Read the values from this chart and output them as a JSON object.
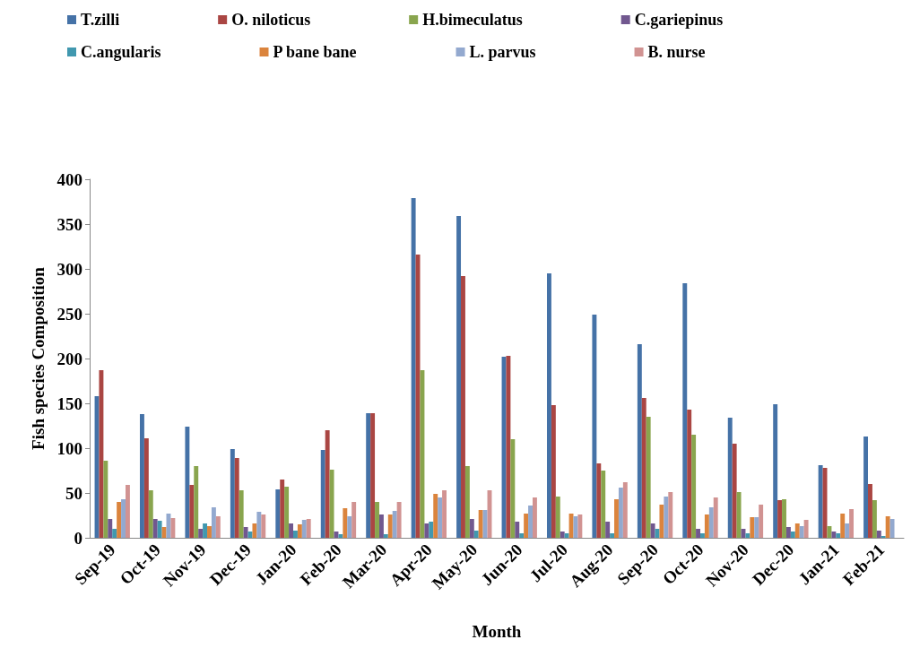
{
  "chart_data": {
    "type": "bar",
    "xlabel": "Month",
    "ylabel": "Fish species Composition",
    "categories": [
      "Sep-19",
      "Oct-19",
      "Nov-19",
      "Dec-19",
      "Jan-20",
      "Feb-20",
      "Mar-20",
      "Apr-20",
      "May-20",
      "Jun-20",
      "Jul-20",
      "Aug-20",
      "Sep-20",
      "Oct-20",
      "Nov-20",
      "Dec-20",
      "Jan-21",
      "Feb-21"
    ],
    "series": [
      {
        "name": "T.zilli",
        "color": "#4572a7",
        "values": [
          158,
          138,
          124,
          99,
          54,
          98,
          139,
          379,
          359,
          202,
          295,
          249,
          216,
          284,
          134,
          149,
          81,
          113
        ]
      },
      {
        "name": "O. niloticus",
        "color": "#aa4643",
        "values": [
          187,
          111,
          59,
          89,
          65,
          120,
          139,
          316,
          292,
          203,
          148,
          83,
          156,
          143,
          105,
          42,
          78,
          60
        ]
      },
      {
        "name": "H.bimeculatus",
        "color": "#89a54e",
        "values": [
          86,
          53,
          80,
          53,
          57,
          76,
          40,
          187,
          80,
          110,
          46,
          75,
          135,
          115,
          51,
          43,
          13,
          42
        ]
      },
      {
        "name": "C.gariepinus",
        "color": "#71588f",
        "values": [
          21,
          21,
          10,
          12,
          16,
          7,
          26,
          16,
          21,
          18,
          7,
          18,
          16,
          10,
          10,
          12,
          7,
          8
        ]
      },
      {
        "name": "C.angularis",
        "color": "#4198af",
        "values": [
          10,
          19,
          16,
          7,
          8,
          4,
          4,
          18,
          8,
          5,
          5,
          5,
          10,
          5,
          5,
          7,
          5,
          2
        ]
      },
      {
        "name": "P bane bane",
        "color": "#db843d",
        "values": [
          40,
          12,
          13,
          16,
          15,
          33,
          26,
          49,
          31,
          27,
          27,
          43,
          37,
          26,
          23,
          16,
          27,
          24
        ]
      },
      {
        "name": "L. parvus",
        "color": "#93a9cf",
        "values": [
          43,
          27,
          34,
          29,
          20,
          24,
          30,
          45,
          31,
          36,
          24,
          56,
          46,
          34,
          23,
          13,
          16,
          21
        ]
      },
      {
        "name": "B. nurse",
        "color": "#d19392",
        "values": [
          59,
          22,
          24,
          26,
          21,
          40,
          40,
          53,
          53,
          45,
          26,
          62,
          51,
          45,
          37,
          20,
          32,
          null
        ]
      }
    ],
    "ylim": [
      0,
      400
    ],
    "yticks": [
      0,
      50,
      100,
      150,
      200,
      250,
      300,
      350,
      400
    ],
    "grid": false,
    "legend": "top"
  }
}
